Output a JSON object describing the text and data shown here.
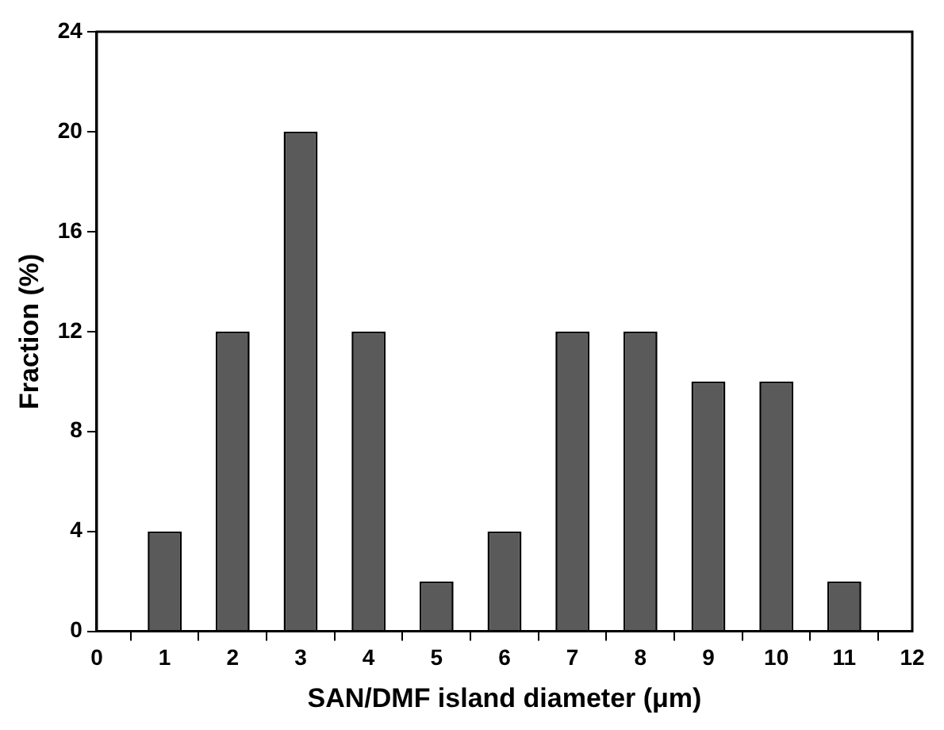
{
  "chart_data": {
    "type": "bar",
    "xlabel": "SAN/DMF island diameter (μm)",
    "ylabel": "Fraction (%)",
    "x": [
      1,
      2,
      3,
      4,
      5,
      6,
      7,
      8,
      9,
      10,
      11
    ],
    "values": [
      4,
      12,
      20,
      12,
      2,
      4,
      12,
      12,
      10,
      10,
      2
    ],
    "color": "#5a5a5a",
    "xlim": [
      0,
      12
    ],
    "xticks": [
      0,
      1,
      2,
      3,
      4,
      5,
      6,
      7,
      8,
      9,
      10,
      11,
      12
    ],
    "ylim": [
      0,
      24
    ],
    "yticks": [
      0,
      4,
      8,
      12,
      16,
      20,
      24
    ],
    "grid": false,
    "legend": false
  }
}
